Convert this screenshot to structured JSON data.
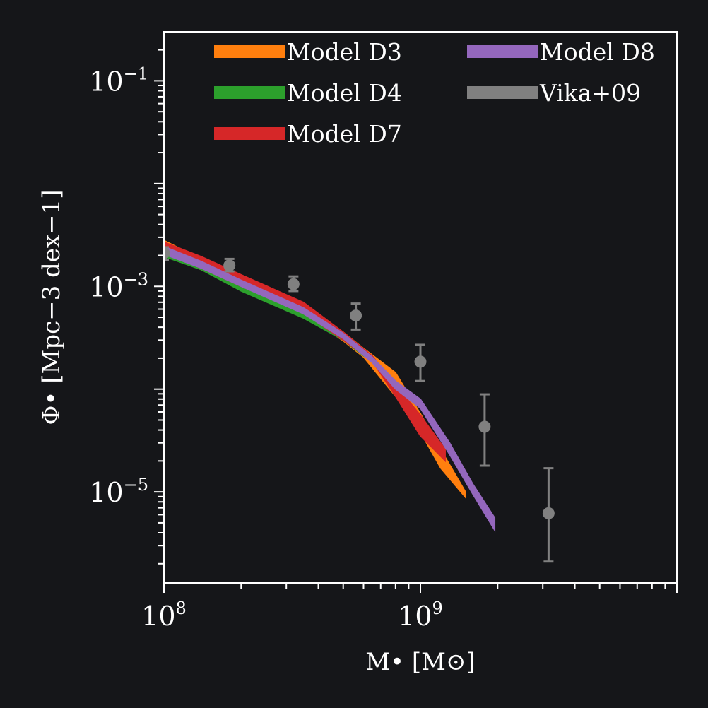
{
  "chart_data": {
    "type": "line",
    "xlabel": "M• [M⊙]",
    "ylabel": "Φ• [Mpc−3 dex−1]",
    "xscale": "log",
    "yscale": "log",
    "xlim": [
      100000000.0,
      10000000000.0
    ],
    "ylim": [
      1.3e-06,
      0.3
    ],
    "x_ticks": [
      {
        "value": 100000000.0,
        "base": "10",
        "exp": "8"
      },
      {
        "value": 1000000000.0,
        "base": "10",
        "exp": "9"
      }
    ],
    "y_ticks": [
      {
        "value": 1e-05,
        "base": "10",
        "exp": "−5"
      },
      {
        "value": 0.001,
        "base": "10",
        "exp": "−3"
      },
      {
        "value": 0.1,
        "base": "10",
        "exp": "−1"
      }
    ],
    "legend_position": "top",
    "grid": false,
    "series": [
      {
        "name": "Model D3",
        "color": "#ff7f0e",
        "kind": "band",
        "x": [
          100000000.0,
          140000000.0,
          200000000.0,
          350000000.0,
          500000000.0,
          600000000.0,
          800000000.0,
          1000000000.0,
          1200000000.0,
          1500000000.0
        ],
        "lo": [
          0.002,
          0.00145,
          0.00095,
          0.00053,
          0.000295,
          0.000205,
          8.5e-05,
          3.8e-05,
          1.7e-05,
          8.8e-06
        ],
        "hi": [
          0.0028,
          0.00185,
          0.0012,
          0.00065,
          0.00036,
          0.00025,
          0.000145,
          5.8e-05,
          2.6e-05,
          1e-05
        ]
      },
      {
        "name": "Model D4",
        "color": "#2ca02c",
        "kind": "band",
        "x": [
          100000000.0,
          140000000.0,
          200000000.0,
          350000000.0,
          500000000.0,
          600000000.0
        ],
        "lo": [
          0.00195,
          0.00145,
          0.0009,
          0.00049,
          0.0003,
          0.00021
        ],
        "hi": [
          0.0022,
          0.0016,
          0.00105,
          0.00056,
          0.00033,
          0.000235
        ]
      },
      {
        "name": "Model D7",
        "color": "#d62728",
        "kind": "band",
        "x": [
          100000000.0,
          140000000.0,
          200000000.0,
          350000000.0,
          500000000.0,
          650000000.0,
          800000000.0,
          1000000000.0,
          1250000000.0
        ],
        "lo": [
          0.0021,
          0.0015,
          0.001,
          0.00055,
          0.0003,
          0.000185,
          8.5e-05,
          3.5e-05,
          2e-05
        ],
        "hi": [
          0.0027,
          0.00195,
          0.0013,
          0.0007,
          0.00036,
          0.00021,
          0.00011,
          5.6e-05,
          2.6e-05
        ]
      },
      {
        "name": "Model D8",
        "color": "#9467bd",
        "kind": "band",
        "x": [
          100000000.0,
          140000000.0,
          200000000.0,
          350000000.0,
          500000000.0,
          650000000.0,
          800000000.0,
          1000000000.0,
          1300000000.0,
          1600000000.0,
          1950000000.0
        ],
        "lo": [
          0.00205,
          0.0015,
          0.001,
          0.00054,
          0.00031,
          0.00018,
          0.0001,
          6.5e-05,
          2.3e-05,
          9.5e-06,
          4.2e-06
        ],
        "hi": [
          0.00245,
          0.00175,
          0.00115,
          0.00062,
          0.00035,
          0.000205,
          0.00012,
          8e-05,
          3e-05,
          1.2e-05,
          5.6e-06
        ]
      },
      {
        "name": "Vika+09",
        "color": "#808080",
        "kind": "errorbar",
        "x": [
          100000000.0,
          180000000.0,
          320000000.0,
          560000000.0,
          1000000000.0,
          1780000000.0,
          3160000000.0
        ],
        "y": [
          0.0021,
          0.0016,
          0.00105,
          0.00052,
          0.000185,
          4.3e-05,
          6.2e-06
        ],
        "ylo": [
          0.0018,
          0.0014,
          0.0009,
          0.00038,
          0.00012,
          1.8e-05,
          2.1e-06
        ],
        "yhi": [
          0.0024,
          0.00185,
          0.00125,
          0.00068,
          0.00027,
          8.9e-05,
          1.7e-05
        ]
      }
    ]
  }
}
